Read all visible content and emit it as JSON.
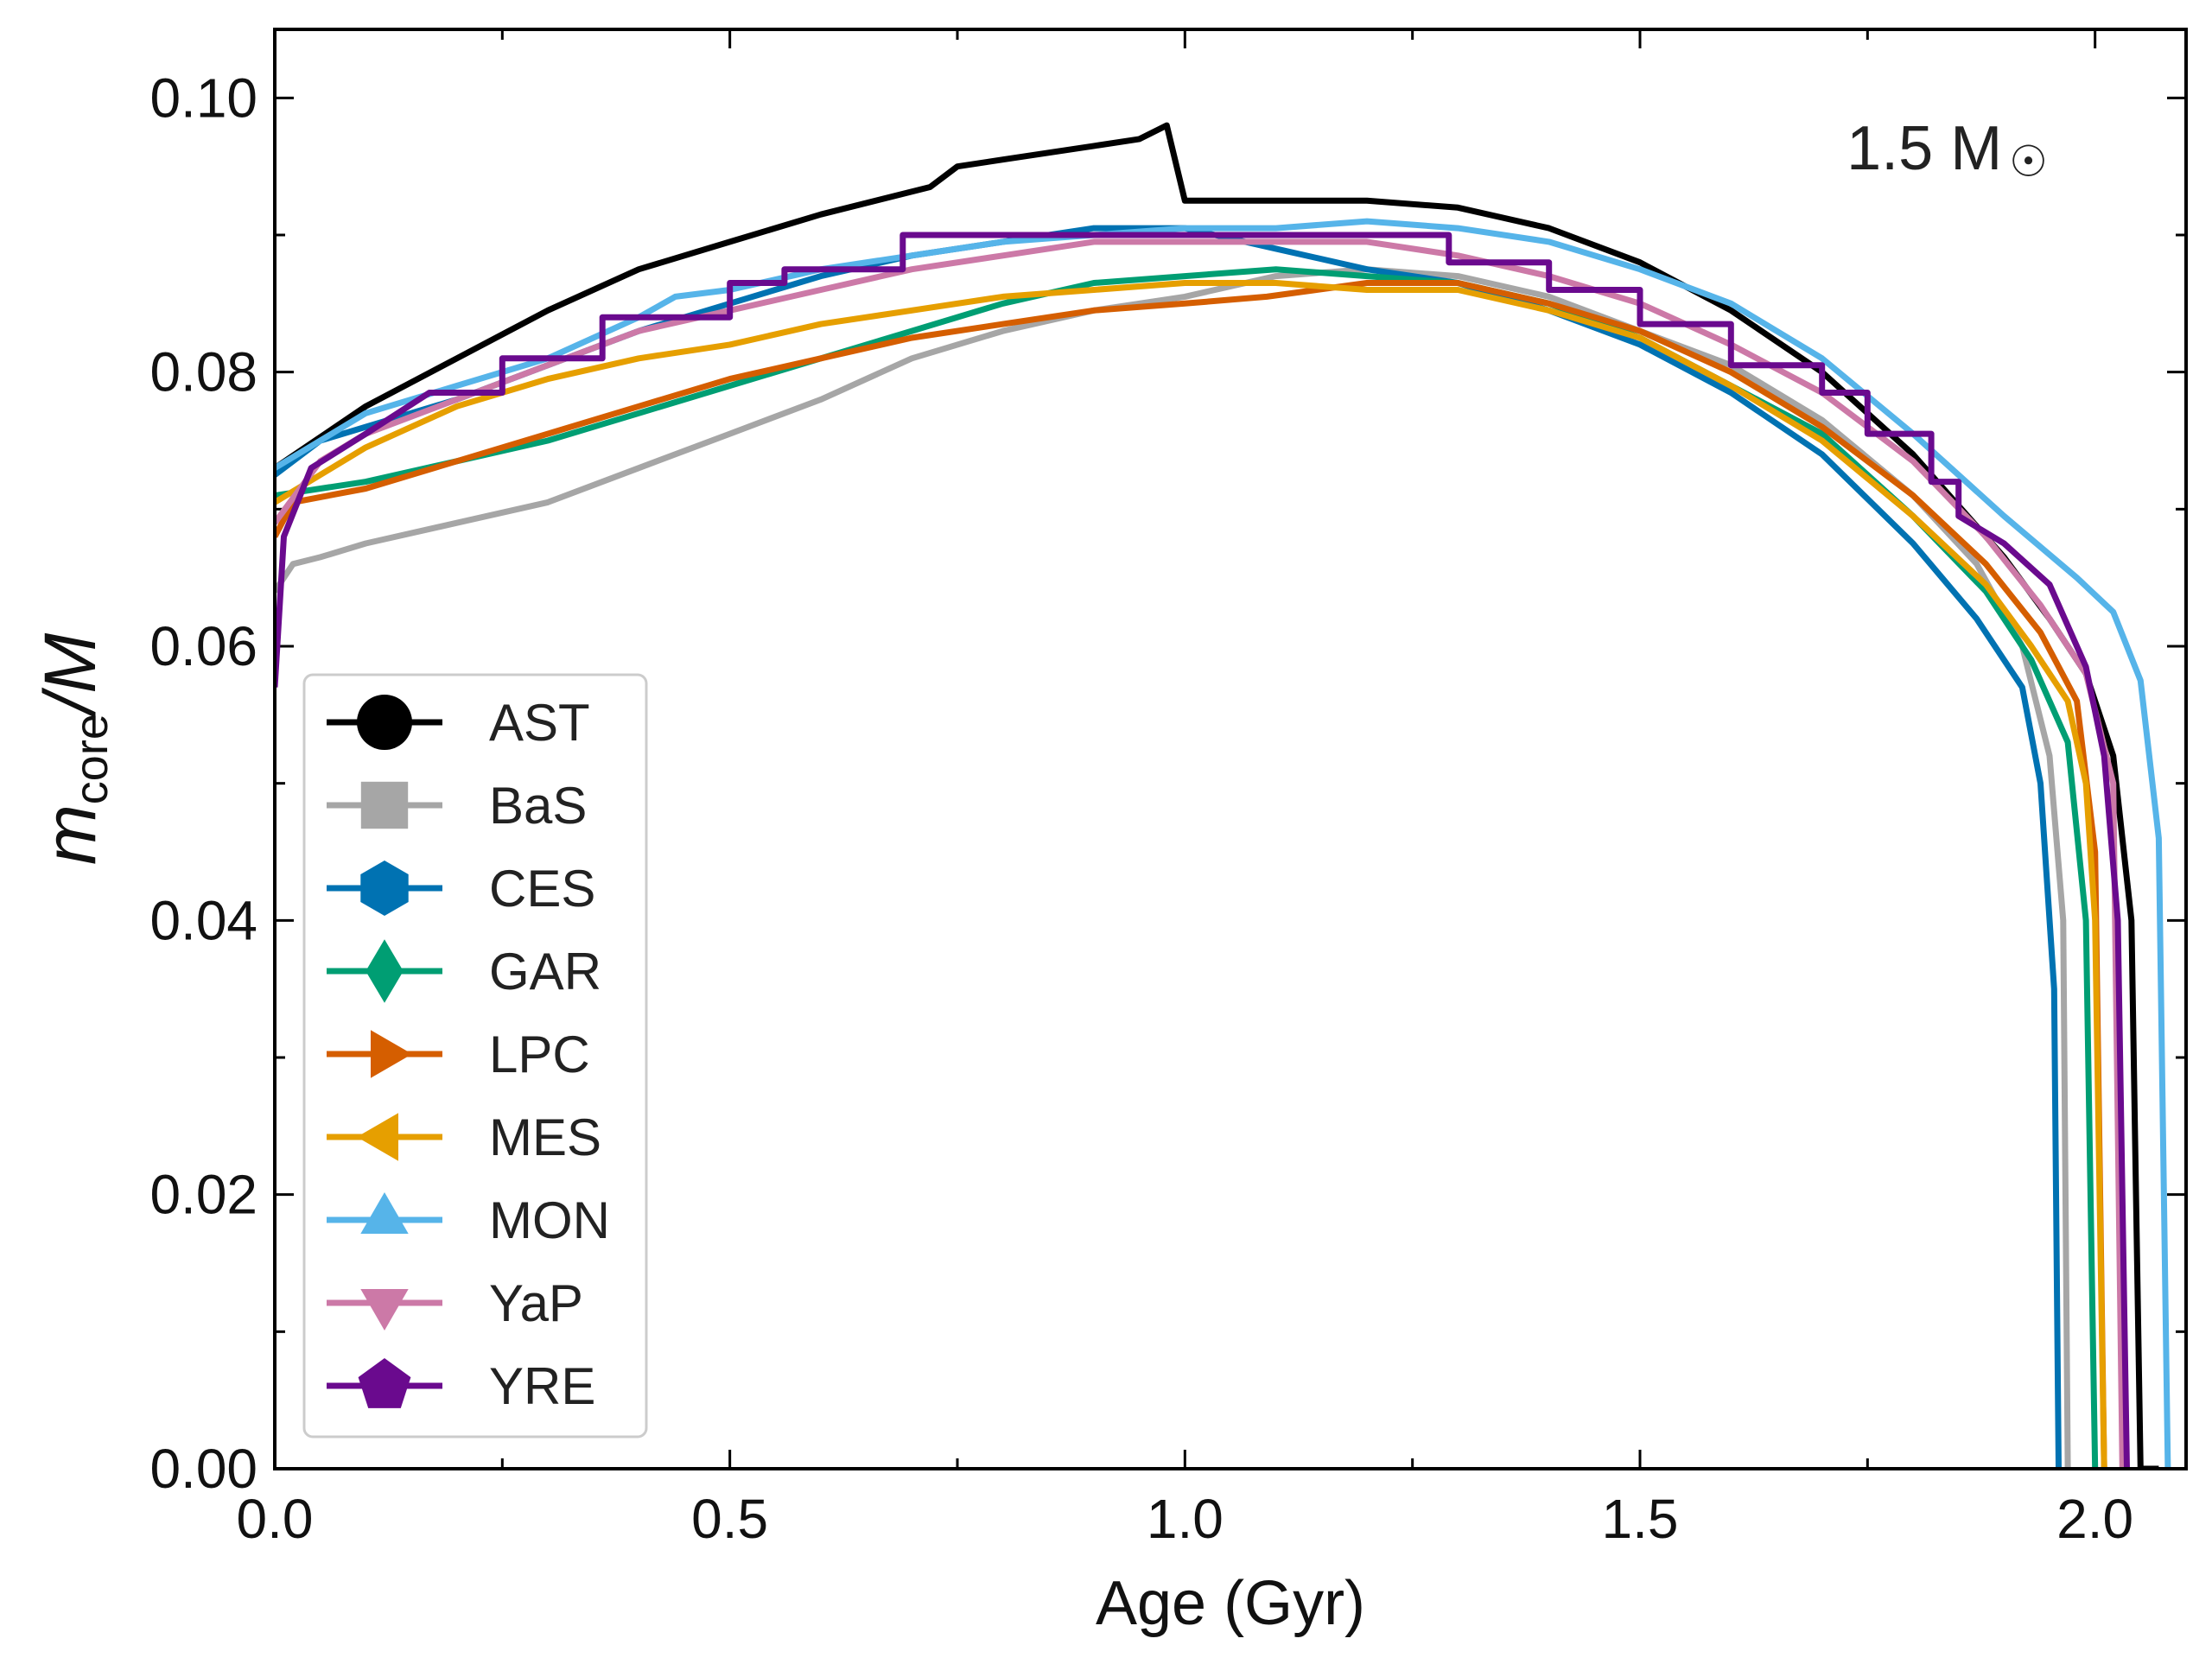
{
  "chart_data": {
    "type": "line",
    "title": "",
    "xlabel": "Age (Gyr)",
    "ylabel_main": "m",
    "ylabel_sub": "core",
    "ylabel_tail": "/M",
    "xlim": [
      0.0,
      2.1
    ],
    "ylim": [
      0.0,
      0.105
    ],
    "xticks": [
      0.0,
      0.5,
      1.0,
      1.5,
      2.0
    ],
    "xtick_labels": [
      "0.0",
      "0.5",
      "1.0",
      "1.5",
      "2.0"
    ],
    "yticks": [
      0.0,
      0.02,
      0.04,
      0.06,
      0.08,
      0.1
    ],
    "ytick_labels": [
      "0.00",
      "0.02",
      "0.04",
      "0.06",
      "0.08",
      "0.10"
    ],
    "annotation_text": "1.5 M",
    "annotation_symbol": "☉",
    "legend_position": "lower-left",
    "series": [
      {
        "name": "AST",
        "color": "#000000",
        "marker": "circle",
        "points": [
          [
            0.0,
            0.073
          ],
          [
            0.1,
            0.0775
          ],
          [
            0.2,
            0.081
          ],
          [
            0.3,
            0.0845
          ],
          [
            0.4,
            0.0875
          ],
          [
            0.5,
            0.0895
          ],
          [
            0.6,
            0.0915
          ],
          [
            0.72,
            0.0935
          ],
          [
            0.75,
            0.095
          ],
          [
            0.8,
            0.0955
          ],
          [
            0.85,
            0.096
          ],
          [
            0.9,
            0.0965
          ],
          [
            0.95,
            0.097
          ],
          [
            0.98,
            0.098
          ],
          [
            1.0,
            0.0925
          ],
          [
            1.05,
            0.0925
          ],
          [
            1.1,
            0.0925
          ],
          [
            1.15,
            0.0925
          ],
          [
            1.2,
            0.0925
          ],
          [
            1.3,
            0.092
          ],
          [
            1.4,
            0.0905
          ],
          [
            1.5,
            0.088
          ],
          [
            1.6,
            0.0845
          ],
          [
            1.7,
            0.08
          ],
          [
            1.8,
            0.074
          ],
          [
            1.9,
            0.0665
          ],
          [
            1.95,
            0.062
          ],
          [
            1.99,
            0.058
          ],
          [
            2.02,
            0.052
          ],
          [
            2.04,
            0.04
          ],
          [
            2.05,
            0.0
          ],
          [
            2.07,
            0.0
          ]
        ]
      },
      {
        "name": "BaS",
        "color": "#a6a6a6",
        "marker": "square",
        "points": [
          [
            0.0,
            0.064
          ],
          [
            0.02,
            0.066
          ],
          [
            0.05,
            0.0665
          ],
          [
            0.1,
            0.0675
          ],
          [
            0.2,
            0.069
          ],
          [
            0.3,
            0.0705
          ],
          [
            0.4,
            0.073
          ],
          [
            0.5,
            0.0755
          ],
          [
            0.6,
            0.078
          ],
          [
            0.7,
            0.081
          ],
          [
            0.8,
            0.083
          ],
          [
            0.9,
            0.0845
          ],
          [
            1.0,
            0.0855
          ],
          [
            1.1,
            0.087
          ],
          [
            1.2,
            0.0875
          ],
          [
            1.3,
            0.087
          ],
          [
            1.4,
            0.0855
          ],
          [
            1.5,
            0.083
          ],
          [
            1.6,
            0.0805
          ],
          [
            1.7,
            0.0765
          ],
          [
            1.8,
            0.071
          ],
          [
            1.87,
            0.066
          ],
          [
            1.92,
            0.06
          ],
          [
            1.95,
            0.052
          ],
          [
            1.965,
            0.04
          ],
          [
            1.97,
            0.0
          ]
        ]
      },
      {
        "name": "CES",
        "color": "#0072b2",
        "marker": "hexagon",
        "points": [
          [
            0.0,
            0.0725
          ],
          [
            0.05,
            0.075
          ],
          [
            0.1,
            0.076
          ],
          [
            0.2,
            0.078
          ],
          [
            0.3,
            0.0805
          ],
          [
            0.4,
            0.083
          ],
          [
            0.5,
            0.085
          ],
          [
            0.6,
            0.087
          ],
          [
            0.7,
            0.0885
          ],
          [
            0.8,
            0.0895
          ],
          [
            0.9,
            0.0905
          ],
          [
            1.0,
            0.0905
          ],
          [
            1.1,
            0.089
          ],
          [
            1.2,
            0.0875
          ],
          [
            1.3,
            0.0865
          ],
          [
            1.4,
            0.0845
          ],
          [
            1.5,
            0.082
          ],
          [
            1.6,
            0.0785
          ],
          [
            1.7,
            0.074
          ],
          [
            1.8,
            0.0675
          ],
          [
            1.87,
            0.062
          ],
          [
            1.92,
            0.057
          ],
          [
            1.94,
            0.05
          ],
          [
            1.955,
            0.035
          ],
          [
            1.96,
            0.0
          ]
        ]
      },
      {
        "name": "GAR",
        "color": "#009e73",
        "marker": "diamond",
        "points": [
          [
            0.0,
            0.071
          ],
          [
            0.1,
            0.072
          ],
          [
            0.2,
            0.0735
          ],
          [
            0.3,
            0.075
          ],
          [
            0.4,
            0.077
          ],
          [
            0.5,
            0.079
          ],
          [
            0.6,
            0.081
          ],
          [
            0.7,
            0.083
          ],
          [
            0.8,
            0.085
          ],
          [
            0.9,
            0.0865
          ],
          [
            1.0,
            0.087
          ],
          [
            1.1,
            0.0875
          ],
          [
            1.2,
            0.087
          ],
          [
            1.3,
            0.0865
          ],
          [
            1.4,
            0.085
          ],
          [
            1.5,
            0.0825
          ],
          [
            1.6,
            0.079
          ],
          [
            1.7,
            0.0755
          ],
          [
            1.8,
            0.0695
          ],
          [
            1.88,
            0.064
          ],
          [
            1.93,
            0.059
          ],
          [
            1.97,
            0.053
          ],
          [
            1.99,
            0.04
          ],
          [
            2.0,
            0.0
          ]
        ]
      },
      {
        "name": "LPC",
        "color": "#d55e00",
        "marker": "triangle-right",
        "points": [
          [
            0.0,
            0.068
          ],
          [
            0.02,
            0.0705
          ],
          [
            0.1,
            0.0715
          ],
          [
            0.2,
            0.0735
          ],
          [
            0.3,
            0.0755
          ],
          [
            0.4,
            0.0775
          ],
          [
            0.5,
            0.0795
          ],
          [
            0.6,
            0.081
          ],
          [
            0.7,
            0.0825
          ],
          [
            0.8,
            0.0835
          ],
          [
            0.9,
            0.0845
          ],
          [
            1.0,
            0.085
          ],
          [
            1.09,
            0.0855
          ],
          [
            1.2,
            0.0865
          ],
          [
            1.3,
            0.0865
          ],
          [
            1.4,
            0.085
          ],
          [
            1.5,
            0.083
          ],
          [
            1.6,
            0.08
          ],
          [
            1.7,
            0.076
          ],
          [
            1.8,
            0.071
          ],
          [
            1.88,
            0.066
          ],
          [
            1.94,
            0.061
          ],
          [
            1.98,
            0.056
          ],
          [
            2.0,
            0.045
          ],
          [
            2.01,
            0.0
          ]
        ]
      },
      {
        "name": "MES",
        "color": "#e69f00",
        "marker": "triangle-left",
        "points": [
          [
            0.0,
            0.0705
          ],
          [
            0.1,
            0.0745
          ],
          [
            0.2,
            0.0775
          ],
          [
            0.3,
            0.0795
          ],
          [
            0.4,
            0.081
          ],
          [
            0.5,
            0.082
          ],
          [
            0.6,
            0.0835
          ],
          [
            0.7,
            0.0845
          ],
          [
            0.8,
            0.0855
          ],
          [
            0.9,
            0.086
          ],
          [
            1.0,
            0.0865
          ],
          [
            1.1,
            0.0865
          ],
          [
            1.2,
            0.086
          ],
          [
            1.3,
            0.086
          ],
          [
            1.4,
            0.0845
          ],
          [
            1.5,
            0.0825
          ],
          [
            1.6,
            0.079
          ],
          [
            1.7,
            0.075
          ],
          [
            1.8,
            0.0695
          ],
          [
            1.88,
            0.0645
          ],
          [
            1.93,
            0.06
          ],
          [
            1.97,
            0.056
          ],
          [
            1.99,
            0.05
          ],
          [
            2.0,
            0.04
          ],
          [
            2.01,
            0.0
          ]
        ]
      },
      {
        "name": "MON",
        "color": "#56b4e9",
        "marker": "triangle-up",
        "points": [
          [
            0.0,
            0.073
          ],
          [
            0.05,
            0.075
          ],
          [
            0.1,
            0.077
          ],
          [
            0.2,
            0.079
          ],
          [
            0.3,
            0.081
          ],
          [
            0.4,
            0.084
          ],
          [
            0.44,
            0.0855
          ],
          [
            0.5,
            0.086
          ],
          [
            0.6,
            0.0875
          ],
          [
            0.7,
            0.0885
          ],
          [
            0.8,
            0.0895
          ],
          [
            0.9,
            0.09
          ],
          [
            1.0,
            0.0905
          ],
          [
            1.1,
            0.0905
          ],
          [
            1.2,
            0.091
          ],
          [
            1.3,
            0.0905
          ],
          [
            1.4,
            0.0895
          ],
          [
            1.5,
            0.0875
          ],
          [
            1.6,
            0.085
          ],
          [
            1.7,
            0.081
          ],
          [
            1.8,
            0.0755
          ],
          [
            1.9,
            0.0695
          ],
          [
            1.98,
            0.065
          ],
          [
            2.02,
            0.0625
          ],
          [
            2.05,
            0.0575
          ],
          [
            2.07,
            0.046
          ],
          [
            2.08,
            0.0
          ]
        ]
      },
      {
        "name": "YaP",
        "color": "#cc79a7",
        "marker": "triangle-down",
        "points": [
          [
            0.0,
            0.069
          ],
          [
            0.05,
            0.0735
          ],
          [
            0.1,
            0.0755
          ],
          [
            0.2,
            0.078
          ],
          [
            0.3,
            0.0805
          ],
          [
            0.4,
            0.083
          ],
          [
            0.5,
            0.0845
          ],
          [
            0.6,
            0.086
          ],
          [
            0.7,
            0.0875
          ],
          [
            0.8,
            0.0885
          ],
          [
            0.9,
            0.0895
          ],
          [
            1.0,
            0.0895
          ],
          [
            1.1,
            0.0895
          ],
          [
            1.2,
            0.0895
          ],
          [
            1.3,
            0.0885
          ],
          [
            1.4,
            0.087
          ],
          [
            1.5,
            0.085
          ],
          [
            1.6,
            0.082
          ],
          [
            1.7,
            0.0785
          ],
          [
            1.8,
            0.0735
          ],
          [
            1.88,
            0.068
          ],
          [
            1.94,
            0.063
          ],
          [
            1.99,
            0.058
          ],
          [
            2.02,
            0.05
          ],
          [
            2.03,
            0.0
          ]
        ]
      },
      {
        "name": "YRE",
        "color": "#6a0a8e",
        "marker": "pentagon",
        "points": [
          [
            0.0,
            0.057
          ],
          [
            0.01,
            0.068
          ],
          [
            0.04,
            0.073
          ],
          [
            0.1,
            0.0755
          ],
          [
            0.17,
            0.0785
          ],
          [
            0.25,
            0.0785
          ],
          [
            0.25,
            0.081
          ],
          [
            0.36,
            0.081
          ],
          [
            0.36,
            0.084
          ],
          [
            0.5,
            0.084
          ],
          [
            0.5,
            0.0865
          ],
          [
            0.56,
            0.0865
          ],
          [
            0.56,
            0.0875
          ],
          [
            0.69,
            0.0875
          ],
          [
            0.69,
            0.09
          ],
          [
            1.29,
            0.09
          ],
          [
            1.29,
            0.088
          ],
          [
            1.4,
            0.088
          ],
          [
            1.4,
            0.086
          ],
          [
            1.5,
            0.086
          ],
          [
            1.5,
            0.0835
          ],
          [
            1.6,
            0.0835
          ],
          [
            1.6,
            0.0805
          ],
          [
            1.7,
            0.0805
          ],
          [
            1.7,
            0.0785
          ],
          [
            1.75,
            0.0785
          ],
          [
            1.75,
            0.0755
          ],
          [
            1.82,
            0.0755
          ],
          [
            1.82,
            0.072
          ],
          [
            1.85,
            0.072
          ],
          [
            1.85,
            0.0695
          ],
          [
            1.9,
            0.0675
          ],
          [
            1.95,
            0.0645
          ],
          [
            1.99,
            0.0585
          ],
          [
            2.01,
            0.052
          ],
          [
            2.025,
            0.04
          ],
          [
            2.035,
            0.0
          ]
        ]
      }
    ]
  }
}
